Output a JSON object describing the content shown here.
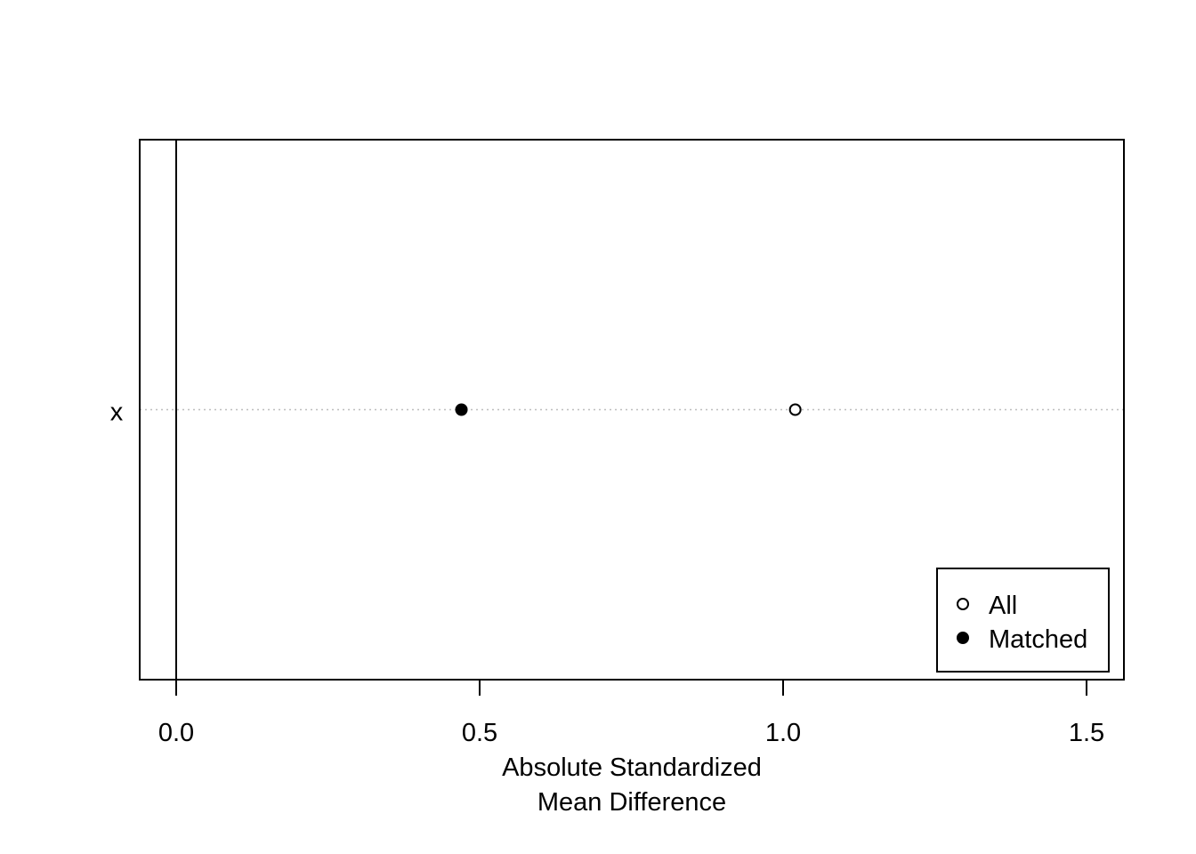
{
  "chart_data": {
    "type": "scatter",
    "xlabel": [
      "Absolute Standardized",
      "Mean Difference"
    ],
    "ylabel": "",
    "xlim": [
      -0.06,
      1.56
    ],
    "x_ticks": [
      0.0,
      0.5,
      1.0,
      1.5
    ],
    "x_tick_labels": [
      "0.0",
      "0.5",
      "1.0",
      "1.5"
    ],
    "reference_line_x": 0.0,
    "grid": "dotted horizontal line at category",
    "categories": [
      "x"
    ],
    "series": [
      {
        "name": "All",
        "marker": "open-circle",
        "values": [
          1.02
        ]
      },
      {
        "name": "Matched",
        "marker": "filled-circle",
        "values": [
          0.47
        ]
      }
    ],
    "legend": {
      "placement": "bottom-right",
      "entries": [
        {
          "label": "All",
          "marker": "open-circle"
        },
        {
          "label": "Matched",
          "marker": "filled-circle"
        }
      ]
    },
    "colors": {
      "ink": "#000000",
      "guide": "#bebebe",
      "background": "#ffffff"
    }
  }
}
